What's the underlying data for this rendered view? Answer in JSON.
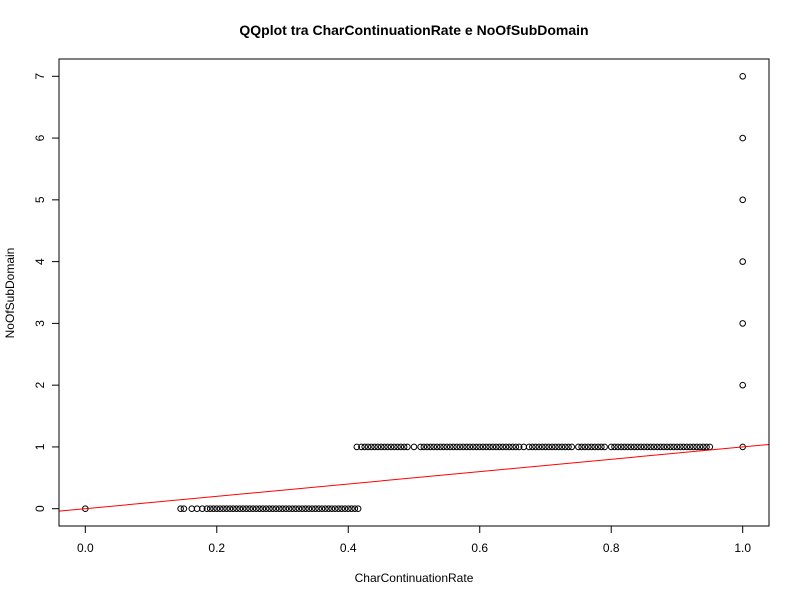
{
  "chart_data": {
    "type": "scatter",
    "title": "QQplot tra CharContinuationRate e NoOfSubDomain",
    "xlabel": "CharContinuationRate",
    "ylabel": "NoOfSubDomain",
    "xlim": [
      -0.04,
      1.04
    ],
    "ylim": [
      -0.28,
      7.28
    ],
    "grid": false,
    "x_ticks": [
      0.0,
      0.2,
      0.4,
      0.6,
      0.8,
      1.0
    ],
    "x_tick_labels": [
      "0.0",
      "0.2",
      "0.4",
      "0.6",
      "0.8",
      "1.0"
    ],
    "y_ticks": [
      0,
      1,
      2,
      3,
      4,
      5,
      6,
      7
    ],
    "y_tick_labels": [
      "0",
      "1",
      "2",
      "3",
      "4",
      "5",
      "6",
      "7"
    ],
    "points_color": "#000000",
    "reference_line": {
      "intercept": 0.0,
      "slope": 1.0,
      "color": "#ff0000"
    },
    "series": [
      {
        "y": 0,
        "x": [
          0.0
        ]
      },
      {
        "y": 0,
        "x": [
          0.145,
          0.15,
          0.162,
          0.17,
          0.178,
          0.185,
          0.19,
          0.195,
          0.2,
          0.205,
          0.21,
          0.215,
          0.22,
          0.225,
          0.23,
          0.235,
          0.24,
          0.245,
          0.25,
          0.255,
          0.26,
          0.265,
          0.27,
          0.275,
          0.28,
          0.285,
          0.29,
          0.295,
          0.3,
          0.305,
          0.31,
          0.315,
          0.32,
          0.325,
          0.33,
          0.335,
          0.34,
          0.345,
          0.35,
          0.355,
          0.36,
          0.365,
          0.37,
          0.375,
          0.38,
          0.385,
          0.39,
          0.395,
          0.4,
          0.405,
          0.41,
          0.415
        ]
      },
      {
        "y": 1,
        "x": [
          0.413,
          0.42,
          0.425,
          0.43,
          0.435,
          0.44,
          0.445,
          0.45,
          0.455,
          0.46,
          0.465,
          0.47,
          0.475,
          0.48,
          0.485,
          0.49,
          0.5,
          0.51,
          0.515,
          0.52,
          0.525,
          0.53,
          0.535,
          0.54,
          0.545,
          0.55,
          0.555,
          0.56,
          0.565,
          0.57,
          0.575,
          0.58,
          0.585,
          0.59,
          0.595,
          0.6,
          0.605,
          0.61,
          0.615,
          0.62,
          0.625,
          0.63,
          0.635,
          0.64,
          0.645,
          0.65,
          0.655,
          0.66,
          0.667,
          0.675,
          0.68,
          0.685,
          0.69,
          0.695,
          0.7,
          0.705,
          0.71,
          0.715,
          0.72,
          0.725,
          0.73,
          0.735,
          0.74,
          0.75,
          0.755,
          0.76,
          0.765,
          0.77,
          0.775,
          0.78,
          0.785,
          0.79,
          0.8,
          0.805,
          0.81,
          0.815,
          0.82,
          0.825,
          0.83,
          0.835,
          0.84,
          0.845,
          0.85,
          0.855,
          0.86,
          0.865,
          0.87,
          0.875,
          0.88,
          0.885,
          0.89,
          0.895,
          0.9,
          0.905,
          0.91,
          0.915,
          0.92,
          0.925,
          0.93,
          0.935,
          0.94,
          0.945,
          0.95
        ]
      },
      {
        "y": 1,
        "x": [
          1.0
        ]
      },
      {
        "y": 2,
        "x": [
          1.0
        ]
      },
      {
        "y": 3,
        "x": [
          1.0
        ]
      },
      {
        "y": 4,
        "x": [
          1.0
        ]
      },
      {
        "y": 5,
        "x": [
          1.0
        ]
      },
      {
        "y": 6,
        "x": [
          1.0
        ]
      },
      {
        "y": 7,
        "x": [
          1.0
        ]
      }
    ]
  }
}
